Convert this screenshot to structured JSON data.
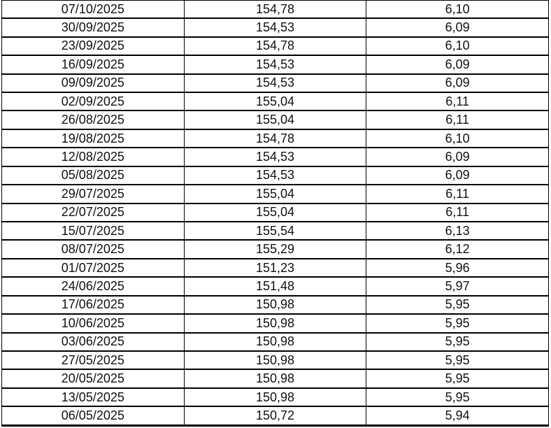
{
  "table": {
    "rows": [
      [
        "07/10/2025",
        "154,78",
        "6,10"
      ],
      [
        "30/09/2025",
        "154,53",
        "6,09"
      ],
      [
        "23/09/2025",
        "154,78",
        "6,10"
      ],
      [
        "16/09/2025",
        "154,53",
        "6,09"
      ],
      [
        "09/09/2025",
        "154,53",
        "6,09"
      ],
      [
        "02/09/2025",
        "155,04",
        "6,11"
      ],
      [
        "26/08/2025",
        "155,04",
        "6,11"
      ],
      [
        "19/08/2025",
        "154,78",
        "6,10"
      ],
      [
        "12/08/2025",
        "154,53",
        "6,09"
      ],
      [
        "05/08/2025",
        "154,53",
        "6,09"
      ],
      [
        "29/07/2025",
        "155,04",
        "6,11"
      ],
      [
        "22/07/2025",
        "155,04",
        "6,11"
      ],
      [
        "15/07/2025",
        "155,54",
        "6,13"
      ],
      [
        "08/07/2025",
        "155,29",
        "6,12"
      ],
      [
        "01/07/2025",
        "151,23",
        "5,96"
      ],
      [
        "24/06/2025",
        "151,48",
        "5,97"
      ],
      [
        "17/06/2025",
        "150,98",
        "5,95"
      ],
      [
        "10/06/2025",
        "150,98",
        "5,95"
      ],
      [
        "03/06/2025",
        "150,98",
        "5,95"
      ],
      [
        "27/05/2025",
        "150,98",
        "5,95"
      ],
      [
        "20/05/2025",
        "150,98",
        "5,95"
      ],
      [
        "13/05/2025",
        "150,98",
        "5,95"
      ],
      [
        "06/05/2025",
        "150,72",
        "5,94"
      ]
    ]
  },
  "colors": {
    "border": "#000000",
    "text": "#111111",
    "background": "#ffffff"
  }
}
